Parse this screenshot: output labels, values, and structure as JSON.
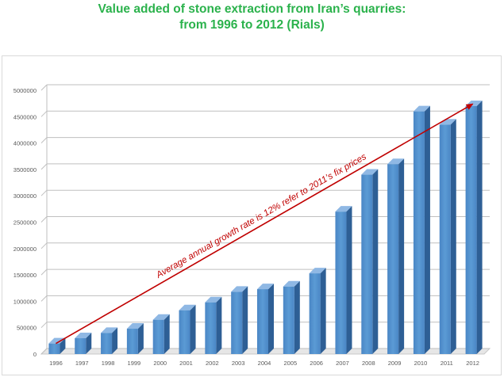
{
  "chart_data": {
    "type": "bar",
    "title": "Value added of stone extraction from Iran’s quarries:",
    "subtitle": "from 1996 to 2012 (Rials)",
    "xlabel": "",
    "ylabel": "",
    "categories": [
      "1996",
      "1997",
      "1998",
      "1999",
      "2000",
      "2001",
      "2002",
      "2003",
      "2004",
      "2005",
      "2006",
      "2007",
      "2008",
      "2009",
      "2010",
      "2011",
      "2012"
    ],
    "values": [
      200000,
      300000,
      400000,
      480000,
      650000,
      830000,
      980000,
      1180000,
      1230000,
      1280000,
      1530000,
      2700000,
      3400000,
      3600000,
      4600000,
      4350000,
      4700000
    ],
    "ylim": [
      0,
      5000000
    ],
    "yticks": [
      0,
      500000,
      1000000,
      1500000,
      2000000,
      2500000,
      3000000,
      3500000,
      4000000,
      4500000,
      5000000
    ],
    "grid": true,
    "legend": "none",
    "bar_color": "#5b9bd5",
    "annotation": {
      "text": "Average annual growth rate is 12% refer to 2011’s fix prices",
      "color": "#c00000",
      "from": {
        "category": "1996",
        "value": 200000
      },
      "to": {
        "category": "2012",
        "value": 4650000
      }
    }
  }
}
